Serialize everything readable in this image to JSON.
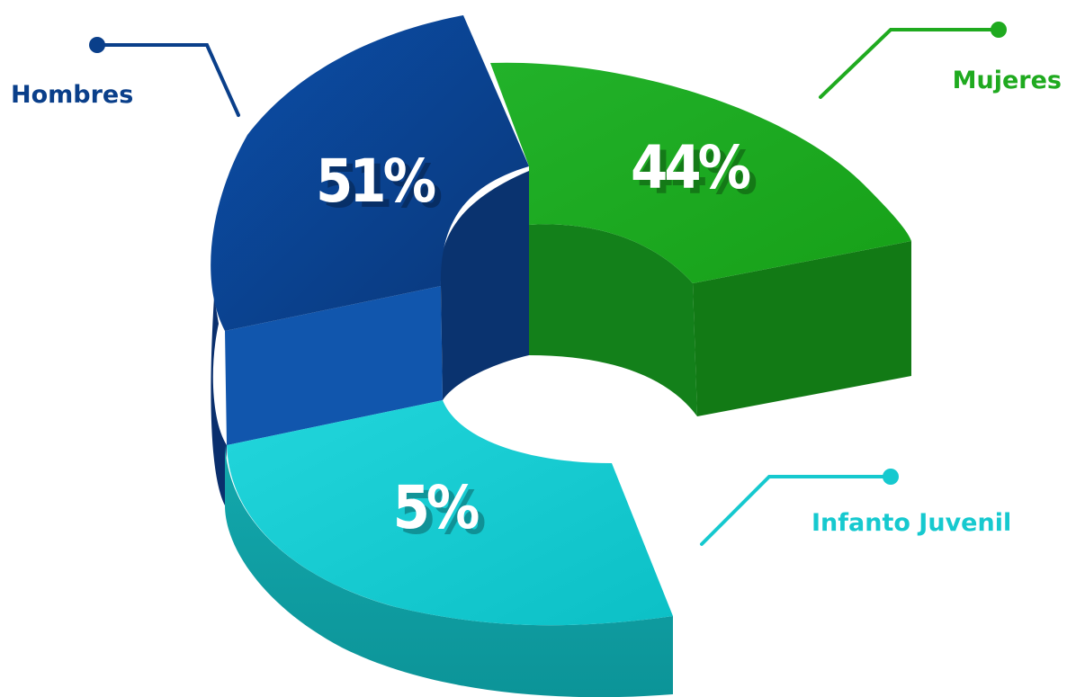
{
  "chart_data": {
    "type": "pie",
    "categories": [
      "Hombres",
      "Mujeres",
      "Infanto Juvenil"
    ],
    "values": [
      51,
      44,
      5
    ],
    "value_labels": [
      "51%",
      "44%",
      "5%"
    ],
    "colors": [
      "#0a3f8a",
      "#1faa1f",
      "#16c9cf"
    ],
    "title": "",
    "style": "3d-donut",
    "legend_placement": "callouts"
  }
}
